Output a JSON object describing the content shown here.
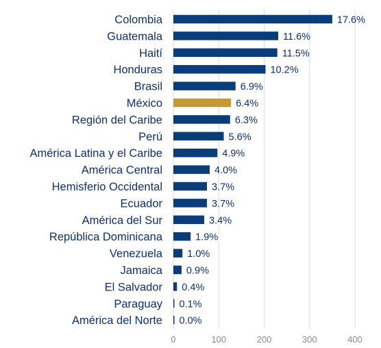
{
  "chart_data": {
    "type": "bar",
    "orientation": "horizontal",
    "categories": [
      "Colombia",
      "Guatemala",
      "Haití",
      "Honduras",
      "Brasil",
      "México",
      "Región del Caribe",
      "Perú",
      "América Latina y el Caribe",
      "América Central",
      "Hemisferio Occidental",
      "Ecuador",
      "América del Sur",
      "República Dominicana",
      "Venezuela",
      "Jamaica",
      "El Salvador",
      "Paraguay",
      "América del Norte"
    ],
    "values": [
      350,
      231,
      229,
      203,
      137,
      127,
      125,
      111,
      97,
      80,
      74,
      74,
      68,
      38,
      20,
      18,
      8,
      2,
      0
    ],
    "data_labels": [
      "17.6%",
      "11.6%",
      "11.5%",
      "10.2%",
      "6.9%",
      "6.4%",
      "6.3%",
      "5.6%",
      "4.9%",
      "4.0%",
      "3.7%",
      "3.7%",
      "3.4%",
      "1.9%",
      "1.0%",
      "0.9%",
      "0.4%",
      "0.1%",
      "0.0%"
    ],
    "highlight_category": "México",
    "xlim": [
      0,
      400
    ],
    "xticks": [
      0,
      100,
      200,
      300,
      400
    ],
    "grid": "vertical",
    "legend": "none",
    "title": "",
    "xlabel": "",
    "ylabel": "",
    "colors": {
      "bar": "#0a3d7a",
      "highlight": "#c49a36",
      "label": "#0d2f6e",
      "tick": "#8a8a8a",
      "grid": "#d9d9d9"
    }
  }
}
